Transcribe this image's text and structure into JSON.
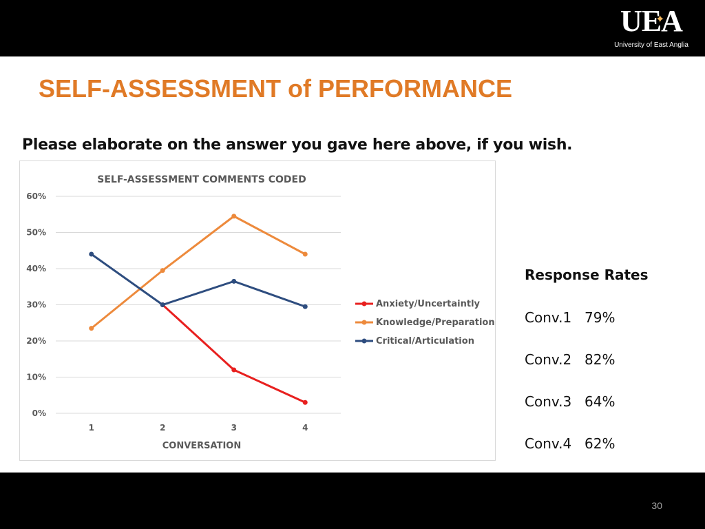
{
  "header": {
    "logo_mark": "UEA",
    "logo_text": "University of East Anglia"
  },
  "slide": {
    "title": "SELF-ASSESSMENT of PERFORMANCE",
    "prompt": "Please elaborate on the answer you gave here above, if you wish.",
    "page_number": "30"
  },
  "response_rates": {
    "title": "Response Rates",
    "items": [
      {
        "label": "Conv.1",
        "value": "79%"
      },
      {
        "label": "Conv.2",
        "value": "82%"
      },
      {
        "label": "Conv.3",
        "value": "64%"
      },
      {
        "label": "Conv.4",
        "value": "62%"
      }
    ]
  },
  "colors": {
    "title_orange": "#e07a26",
    "anxiety": "#e8201f",
    "knowledge": "#ed8a3c",
    "critical": "#2e4d7f"
  },
  "chart_data": {
    "type": "line",
    "title": "SELF-ASSESSMENT COMMENTS CODED",
    "xlabel": "CONVERSATION",
    "ylabel": "",
    "categories": [
      "1",
      "2",
      "3",
      "4"
    ],
    "ylim": [
      0,
      0.6
    ],
    "yticks": [
      0,
      0.1,
      0.2,
      0.3,
      0.4,
      0.5,
      0.6
    ],
    "ytick_labels": [
      "0%",
      "10%",
      "20%",
      "30%",
      "40%",
      "50%",
      "60%"
    ],
    "grid": true,
    "legend_position": "right",
    "series": [
      {
        "name": "Anxiety/Uncertaintly",
        "color": "#e8201f",
        "values": [
          null,
          0.3,
          0.12,
          0.03
        ]
      },
      {
        "name": "Knowledge/Preparation",
        "color": "#ed8a3c",
        "values": [
          0.235,
          0.395,
          0.545,
          0.44
        ]
      },
      {
        "name": "Critical/Articulation",
        "color": "#2e4d7f",
        "values": [
          0.44,
          0.3,
          0.365,
          0.295
        ]
      }
    ]
  }
}
